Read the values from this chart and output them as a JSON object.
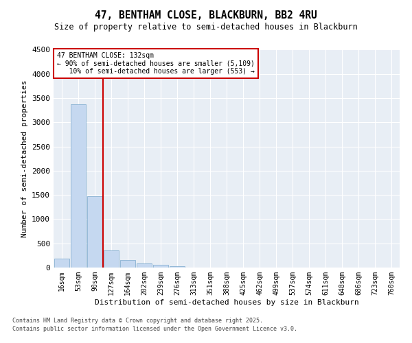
{
  "title1": "47, BENTHAM CLOSE, BLACKBURN, BB2 4RU",
  "title2": "Size of property relative to semi-detached houses in Blackburn",
  "xlabel": "Distribution of semi-detached houses by size in Blackburn",
  "ylabel": "Number of semi-detached properties",
  "categories": [
    "16sqm",
    "53sqm",
    "90sqm",
    "127sqm",
    "164sqm",
    "202sqm",
    "239sqm",
    "276sqm",
    "313sqm",
    "351sqm",
    "388sqm",
    "425sqm",
    "462sqm",
    "499sqm",
    "537sqm",
    "574sqm",
    "611sqm",
    "648sqm",
    "686sqm",
    "723sqm",
    "760sqm"
  ],
  "values": [
    180,
    3380,
    1480,
    350,
    155,
    85,
    50,
    25,
    5,
    0,
    0,
    0,
    0,
    0,
    0,
    0,
    0,
    0,
    0,
    0,
    0
  ],
  "bar_color": "#c5d8f0",
  "bar_edge_color": "#7aa8cc",
  "vline_x": 2.5,
  "vline_color": "#cc0000",
  "annotation_line1": "47 BENTHAM CLOSE: 132sqm",
  "annotation_line2": "← 90% of semi-detached houses are smaller (5,109)",
  "annotation_line3": "   10% of semi-detached houses are larger (553) →",
  "annotation_box_color": "#cc0000",
  "ylim": [
    0,
    4500
  ],
  "yticks": [
    0,
    500,
    1000,
    1500,
    2000,
    2500,
    3000,
    3500,
    4000,
    4500
  ],
  "background_color": "#e8eef5",
  "footer1": "Contains HM Land Registry data © Crown copyright and database right 2025.",
  "footer2": "Contains public sector information licensed under the Open Government Licence v3.0."
}
